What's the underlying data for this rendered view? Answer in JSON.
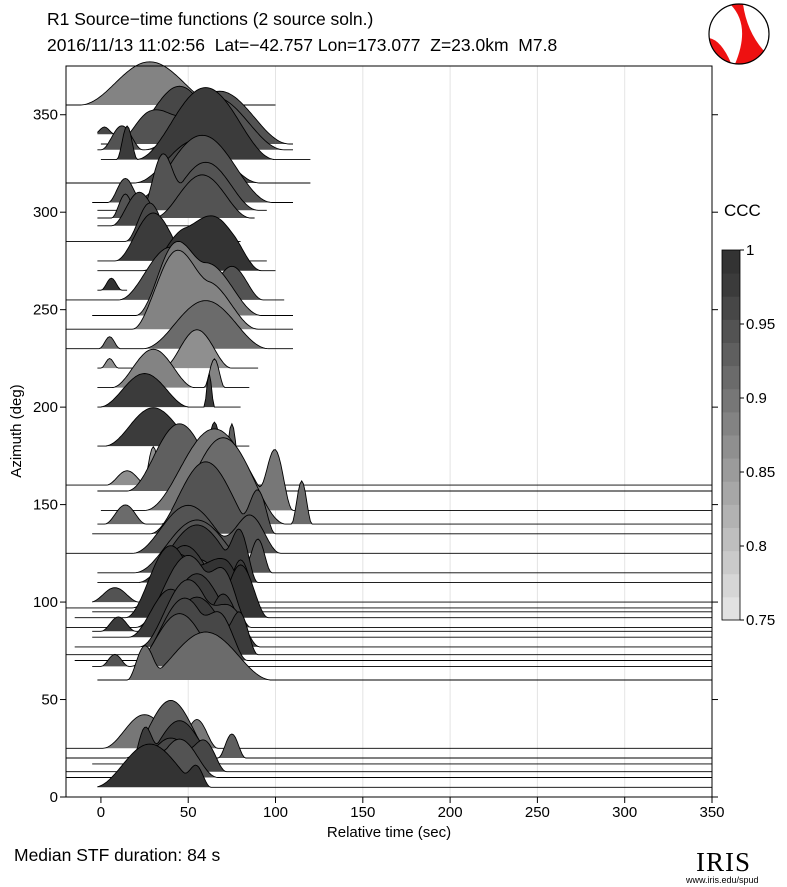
{
  "header": {
    "title": "R1 Source−time functions (2 source soln.)",
    "subtitle": "2016/11/13 11:02:56  Lat=−42.757 Lon=173.077  Z=23.0km  M7.8"
  },
  "footer": {
    "median_text": "Median STF duration: 84 s"
  },
  "logo": {
    "name": "IRIS",
    "url": "www.iris.edu/spud"
  },
  "beachball_colors": {
    "compression": "#ee1111",
    "dilatation": "#ffffff"
  },
  "chart_data": {
    "type": "area",
    "xlabel": "Relative time (sec)",
    "ylabel": "Azimuth (deg)",
    "xlim": [
      -20,
      350
    ],
    "ylim": [
      0,
      375
    ],
    "xticks": [
      0,
      50,
      100,
      150,
      200,
      250,
      300,
      350
    ],
    "yticks": [
      0,
      50,
      100,
      150,
      200,
      250,
      300,
      350
    ],
    "grid": "vertical",
    "colorbar": {
      "label": "CCC",
      "range": [
        0.75,
        1
      ],
      "ticks": [
        "1",
        "0.95",
        "0.9",
        "0.85",
        "0.8",
        "0.75"
      ],
      "colors": [
        "#e2e2e2",
        "#d6d6d6",
        "#cacaca",
        "#bebebe",
        "#b2b2b2",
        "#a7a7a7",
        "#9b9b9b",
        "#8f8f8f",
        "#838383",
        "#777777",
        "#6b6b6b",
        "#5f5f5f",
        "#535353",
        "#474747",
        "#3b3b3b",
        "#333333"
      ]
    },
    "traces": [
      {
        "az": 355,
        "ccc": 0.88,
        "start": -20,
        "end": 100,
        "pulses": [
          [
            28,
            40,
            18
          ]
        ]
      },
      {
        "az": 340,
        "ccc": 0.96,
        "start": -2,
        "end": 95,
        "pulses": [
          [
            45,
            30,
            20
          ],
          [
            2,
            6,
            3
          ]
        ]
      },
      {
        "az": 335,
        "ccc": 0.94,
        "start": 0,
        "end": 110,
        "pulses": [
          [
            30,
            22,
            14
          ],
          [
            68,
            40,
            22
          ]
        ]
      },
      {
        "az": 332,
        "ccc": 0.95,
        "start": -2,
        "end": 110,
        "pulses": [
          [
            12,
            12,
            10
          ],
          [
            65,
            40,
            22
          ]
        ]
      },
      {
        "az": 327,
        "ccc": 0.97,
        "start": 0,
        "end": 120,
        "pulses": [
          [
            15,
            6,
            14
          ],
          [
            60,
            40,
            30
          ]
        ]
      },
      {
        "az": 315,
        "ccc": 0.96,
        "start": -20,
        "end": 120,
        "pulses": [
          [
            55,
            36,
            18
          ]
        ]
      },
      {
        "az": 305,
        "ccc": 0.94,
        "start": -5,
        "end": 110,
        "pulses": [
          [
            14,
            10,
            10
          ],
          [
            58,
            40,
            28
          ]
        ]
      },
      {
        "az": 301,
        "ccc": 0.95,
        "start": -2,
        "end": 95,
        "pulses": [
          [
            35,
            12,
            22
          ],
          [
            60,
            30,
            20
          ]
        ]
      },
      {
        "az": 297,
        "ccc": 0.95,
        "start": -2,
        "end": 88,
        "pulses": [
          [
            14,
            8,
            10
          ],
          [
            58,
            28,
            18
          ]
        ]
      },
      {
        "az": 293,
        "ccc": 0.96,
        "start": -2,
        "end": 60,
        "pulses": [
          [
            22,
            16,
            14
          ]
        ]
      },
      {
        "az": 285,
        "ccc": 0.96,
        "start": -20,
        "end": 80,
        "pulses": [
          [
            28,
            14,
            16
          ]
        ]
      },
      {
        "az": 275,
        "ccc": 0.98,
        "start": -2,
        "end": 95,
        "pulses": [
          [
            30,
            22,
            20
          ]
        ]
      },
      {
        "az": 270,
        "ccc": 0.99,
        "start": -2,
        "end": 100,
        "pulses": [
          [
            50,
            26,
            18
          ],
          [
            70,
            22,
            18
          ]
        ]
      },
      {
        "az": 260,
        "ccc": 0.995,
        "start": -2,
        "end": 15,
        "pulses": [
          [
            6,
            6,
            5
          ]
        ]
      },
      {
        "az": 255,
        "ccc": 0.95,
        "start": -20,
        "end": 105,
        "pulses": [
          [
            40,
            30,
            22
          ],
          [
            75,
            18,
            14
          ]
        ]
      },
      {
        "az": 247,
        "ccc": 0.9,
        "start": -5,
        "end": 110,
        "pulses": [
          [
            40,
            20,
            22
          ],
          [
            60,
            32,
            22
          ]
        ]
      },
      {
        "az": 240,
        "ccc": 0.88,
        "start": -20,
        "end": 110,
        "pulses": [
          [
            40,
            22,
            26
          ],
          [
            60,
            30,
            20
          ]
        ]
      },
      {
        "az": 230,
        "ccc": 0.91,
        "start": -20,
        "end": 110,
        "pulses": [
          [
            60,
            36,
            20
          ],
          [
            5,
            6,
            5
          ]
        ]
      },
      {
        "az": 220,
        "ccc": 0.86,
        "start": -2,
        "end": 90,
        "pulses": [
          [
            55,
            20,
            16
          ],
          [
            5,
            5,
            4
          ]
        ]
      },
      {
        "az": 210,
        "ccc": 0.89,
        "start": -2,
        "end": 85,
        "pulses": [
          [
            30,
            24,
            16
          ],
          [
            65,
            6,
            12
          ]
        ]
      },
      {
        "az": 200,
        "ccc": 0.98,
        "start": -2,
        "end": 80,
        "pulses": [
          [
            25,
            26,
            14
          ],
          [
            62,
            3,
            14
          ]
        ]
      },
      {
        "az": 180,
        "ccc": 0.97,
        "start": -2,
        "end": 85,
        "pulses": [
          [
            30,
            28,
            16
          ],
          [
            65,
            5,
            10
          ]
        ]
      },
      {
        "az": 160,
        "ccc": 0.87,
        "start": -20,
        "end": 350,
        "pulses": [
          [
            15,
            12,
            6
          ],
          [
            30,
            6,
            16
          ]
        ]
      },
      {
        "az": 157,
        "ccc": 0.93,
        "start": -2,
        "end": 350,
        "pulses": [
          [
            45,
            30,
            28
          ],
          [
            75,
            6,
            28
          ]
        ]
      },
      {
        "az": 147,
        "ccc": 0.9,
        "start": 0,
        "end": 350,
        "pulses": [
          [
            65,
            40,
            34
          ],
          [
            100,
            10,
            24
          ]
        ]
      },
      {
        "az": 140,
        "ccc": 0.92,
        "start": -2,
        "end": 350,
        "pulses": [
          [
            14,
            12,
            8
          ],
          [
            70,
            36,
            36
          ],
          [
            115,
            6,
            18
          ]
        ]
      },
      {
        "az": 135,
        "ccc": 0.94,
        "start": -5,
        "end": 350,
        "pulses": [
          [
            60,
            32,
            30
          ],
          [
            90,
            10,
            18
          ]
        ]
      },
      {
        "az": 125,
        "ccc": 0.94,
        "start": -20,
        "end": 350,
        "pulses": [
          [
            50,
            32,
            20
          ],
          [
            85,
            18,
            16
          ]
        ]
      },
      {
        "az": 115,
        "ccc": 0.95,
        "start": -2,
        "end": 350,
        "pulses": [
          [
            55,
            36,
            22
          ],
          [
            90,
            8,
            14
          ]
        ]
      },
      {
        "az": 110,
        "ccc": 0.97,
        "start": -2,
        "end": 350,
        "pulses": [
          [
            55,
            34,
            24
          ],
          [
            80,
            10,
            18
          ]
        ]
      },
      {
        "az": 100,
        "ccc": 0.95,
        "start": -5,
        "end": 350,
        "pulses": [
          [
            8,
            14,
            6
          ],
          [
            55,
            30,
            18
          ]
        ]
      },
      {
        "az": 97,
        "ccc": 0.98,
        "start": -20,
        "end": 350,
        "pulses": [
          [
            48,
            30,
            26
          ],
          [
            80,
            12,
            20
          ]
        ]
      },
      {
        "az": 95,
        "ccc": 0.99,
        "start": -5,
        "end": 350,
        "pulses": [
          [
            45,
            26,
            24
          ],
          [
            70,
            20,
            22
          ]
        ]
      },
      {
        "az": 92,
        "ccc": 0.995,
        "start": -15,
        "end": 350,
        "pulses": [
          [
            40,
            26,
            30
          ],
          [
            80,
            16,
            22
          ]
        ]
      },
      {
        "az": 87,
        "ccc": 0.96,
        "start": -20,
        "end": 350,
        "pulses": [
          [
            50,
            30,
            30
          ],
          [
            72,
            14,
            18
          ]
        ]
      },
      {
        "az": 85,
        "ccc": 0.97,
        "start": -5,
        "end": 350,
        "pulses": [
          [
            10,
            10,
            6
          ],
          [
            55,
            28,
            24
          ]
        ]
      },
      {
        "az": 82,
        "ccc": 0.98,
        "start": -5,
        "end": 350,
        "pulses": [
          [
            40,
            24,
            20
          ],
          [
            70,
            16,
            18
          ]
        ]
      },
      {
        "az": 77,
        "ccc": 0.96,
        "start": -15,
        "end": 350,
        "pulses": [
          [
            50,
            28,
            28
          ],
          [
            75,
            16,
            16
          ]
        ]
      },
      {
        "az": 73,
        "ccc": 0.97,
        "start": -20,
        "end": 350,
        "pulses": [
          [
            55,
            30,
            24
          ],
          [
            80,
            10,
            16
          ]
        ]
      },
      {
        "az": 70,
        "ccc": 0.96,
        "start": -15,
        "end": 350,
        "pulses": [
          [
            48,
            28,
            26
          ],
          [
            70,
            14,
            16
          ]
        ]
      },
      {
        "az": 67,
        "ccc": 0.95,
        "start": -5,
        "end": 350,
        "pulses": [
          [
            8,
            8,
            5
          ],
          [
            45,
            28,
            22
          ]
        ]
      },
      {
        "az": 60,
        "ccc": 0.92,
        "start": -2,
        "end": 350,
        "pulses": [
          [
            60,
            38,
            20
          ],
          [
            25,
            10,
            14
          ]
        ]
      },
      {
        "az": 25,
        "ccc": 0.9,
        "start": -20,
        "end": 350,
        "pulses": [
          [
            25,
            24,
            14
          ],
          [
            55,
            12,
            12
          ]
        ]
      },
      {
        "az": 20,
        "ccc": 0.93,
        "start": -20,
        "end": 350,
        "pulses": [
          [
            40,
            26,
            24
          ],
          [
            75,
            8,
            10
          ]
        ]
      },
      {
        "az": 17,
        "ccc": 0.97,
        "start": -5,
        "end": 350,
        "pulses": [
          [
            45,
            24,
            18
          ],
          [
            25,
            8,
            14
          ]
        ]
      },
      {
        "az": 13,
        "ccc": 0.96,
        "start": -20,
        "end": 350,
        "pulses": [
          [
            40,
            24,
            14
          ],
          [
            60,
            12,
            12
          ]
        ]
      },
      {
        "az": 10,
        "ccc": 0.95,
        "start": -20,
        "end": 350,
        "pulses": [
          [
            45,
            22,
            16
          ],
          [
            28,
            10,
            10
          ]
        ]
      },
      {
        "az": 5,
        "ccc": 0.99,
        "start": -2,
        "end": 350,
        "pulses": [
          [
            28,
            32,
            18
          ],
          [
            55,
            8,
            8
          ]
        ]
      }
    ]
  }
}
